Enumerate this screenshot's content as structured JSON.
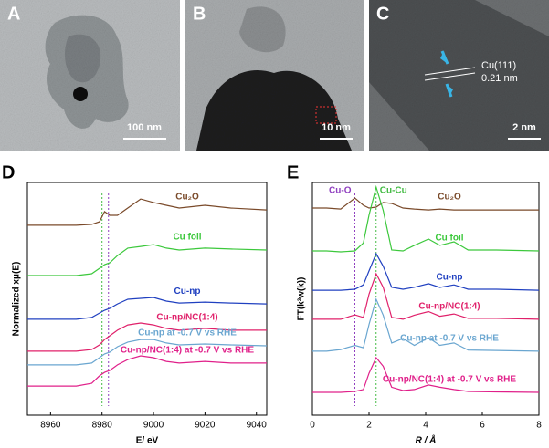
{
  "images": [
    {
      "letter": "A",
      "scale_bar": "100 nm"
    },
    {
      "letter": "B",
      "scale_bar": "10 nm"
    },
    {
      "letter": "C",
      "scale_bar": "2 nm",
      "annotation": "Cu(111)",
      "annotation2": "0.21 nm"
    }
  ],
  "chart_data": [
    {
      "type": "line",
      "panel": "D",
      "xlabel": "E/ eV",
      "ylabel": "Normalized xμ(E)",
      "x": [
        8951,
        8970,
        8976,
        8979,
        8981,
        8983,
        8986,
        8990,
        8995,
        9000,
        9005,
        9010,
        9020,
        9030,
        9044
      ],
      "xlim": [
        8951,
        9044
      ],
      "xticks": [
        8960,
        8980,
        9000,
        9020,
        9040
      ],
      "ylim": [
        0,
        10
      ],
      "reference_lines": [
        {
          "x": 8980,
          "color": "#44bb44"
        },
        {
          "x": 8982.5,
          "color": "#9040c0"
        }
      ],
      "series": [
        {
          "name": "Cu₂O",
          "color": "#7a4a2a",
          "values": [
            8.16,
            8.16,
            8.2,
            8.31,
            8.75,
            8.59,
            8.59,
            8.9,
            9.29,
            9.14,
            9.02,
            8.9,
            9.02,
            8.9,
            8.82
          ]
        },
        {
          "name": "Cu foil",
          "color": "#3cc83c",
          "values": [
            6.0,
            6.0,
            6.08,
            6.31,
            6.47,
            6.55,
            6.86,
            7.18,
            7.25,
            7.33,
            7.18,
            7.1,
            7.18,
            7.14,
            7.1
          ]
        },
        {
          "name": "Cu-np",
          "color": "#2040c0",
          "values": [
            4.12,
            4.12,
            4.2,
            4.39,
            4.51,
            4.59,
            4.78,
            4.98,
            5.02,
            5.06,
            4.9,
            4.82,
            4.86,
            4.82,
            4.78
          ]
        },
        {
          "name": "Cu-np/NC(1:4)",
          "color": "#e0206a",
          "values": [
            2.75,
            2.75,
            2.82,
            3.02,
            3.25,
            3.41,
            3.65,
            3.88,
            3.96,
            3.88,
            3.73,
            3.65,
            3.73,
            3.65,
            3.65
          ]
        },
        {
          "name": "Cu-np at -0.7 V vs RHE",
          "color": "#6aa6d0",
          "values": [
            2.16,
            2.16,
            2.24,
            2.47,
            2.63,
            2.71,
            2.94,
            3.14,
            3.25,
            3.25,
            3.1,
            3.02,
            3.06,
            3.02,
            2.98
          ]
        },
        {
          "name": "Cu-np/NC(1:4) at -0.7 V vs RHE",
          "color": "#e0208a",
          "values": [
            1.25,
            1.25,
            1.37,
            1.69,
            1.84,
            1.92,
            2.16,
            2.39,
            2.55,
            2.47,
            2.31,
            2.24,
            2.31,
            2.24,
            2.24
          ]
        }
      ]
    },
    {
      "type": "line",
      "panel": "E",
      "xlabel": "R / Å",
      "ylabel": "FT(k³w(k))",
      "x": [
        0,
        0.5,
        1,
        1.5,
        1.8,
        2.0,
        2.25,
        2.5,
        2.8,
        3.2,
        3.6,
        4.1,
        4.5,
        5.0,
        5.5,
        6.5,
        8
      ],
      "xlim": [
        0,
        8
      ],
      "xticks": [
        0,
        2,
        4,
        6,
        8
      ],
      "ylim": [
        0,
        10
      ],
      "reference_lines": [
        {
          "x": 1.5,
          "color": "#9040c0",
          "label": "Cu-O"
        },
        {
          "x": 2.25,
          "color": "#44bb44",
          "label": "Cu-Cu"
        }
      ],
      "series": [
        {
          "name": "Cu₂O",
          "color": "#7a4a2a",
          "values": [
            8.9,
            8.9,
            8.86,
            9.33,
            9.02,
            8.9,
            8.94,
            9.14,
            9.1,
            8.9,
            8.86,
            8.82,
            8.86,
            8.82,
            8.82,
            8.82,
            8.82
          ]
        },
        {
          "name": "Cu foil",
          "color": "#3cc83c",
          "values": [
            7.06,
            7.06,
            7.02,
            7.06,
            7.4,
            8.6,
            9.8,
            8.8,
            7.1,
            7.06,
            7.3,
            7.57,
            7.3,
            7.45,
            7.1,
            7.1,
            7.06
          ]
        },
        {
          "name": "Cu-np",
          "color": "#2040c0",
          "values": [
            5.37,
            5.37,
            5.37,
            5.41,
            5.6,
            6.2,
            6.94,
            6.4,
            5.5,
            5.41,
            5.5,
            5.65,
            5.49,
            5.6,
            5.41,
            5.41,
            5.37
          ]
        },
        {
          "name": "Cu-np/NC(1:4)",
          "color": "#e0206a",
          "values": [
            4.12,
            4.12,
            4.12,
            4.31,
            4.2,
            5.2,
            6.08,
            5.5,
            4.2,
            4.12,
            4.3,
            4.45,
            4.25,
            4.35,
            4.16,
            4.16,
            4.12
          ]
        },
        {
          "name": "Cu-np at -0.7 V vs RHE",
          "color": "#6aa6d0",
          "values": [
            2.75,
            2.75,
            2.82,
            3.0,
            2.9,
            3.9,
            4.98,
            4.3,
            3.1,
            3.3,
            3.0,
            3.33,
            3.0,
            3.1,
            2.8,
            2.78,
            2.75
          ]
        },
        {
          "name": "Cu-np/NC(1:4) at -0.7 V vs RHE",
          "color": "#e0208a",
          "values": [
            0.98,
            0.98,
            0.98,
            1.02,
            1.1,
            1.8,
            2.47,
            2.1,
            1.2,
            1.06,
            1.1,
            1.3,
            1.2,
            1.1,
            1.02,
            1.0,
            0.98
          ]
        }
      ]
    }
  ]
}
